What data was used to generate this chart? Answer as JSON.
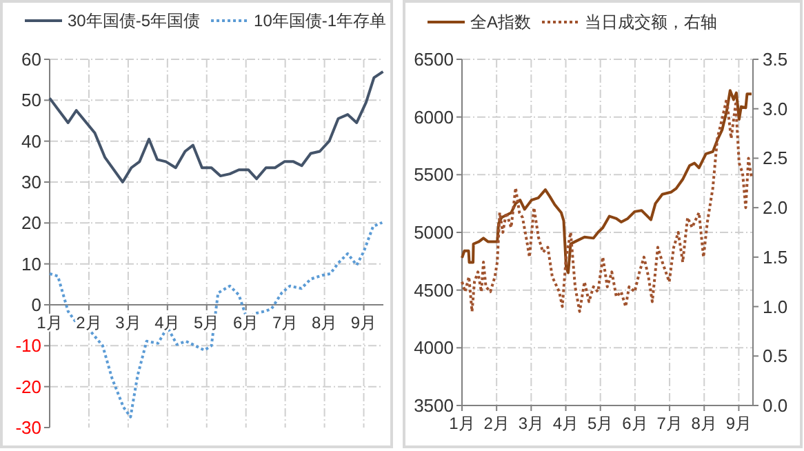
{
  "chart_data": [
    {
      "type": "line",
      "legend": "top",
      "grid": true,
      "xlim": [
        1,
        9.5
      ],
      "xticks": [
        {
          "value": 1,
          "label": "1月"
        },
        {
          "value": 2,
          "label": "2月"
        },
        {
          "value": 3,
          "label": "3月"
        },
        {
          "value": 4,
          "label": "4月"
        },
        {
          "value": 5,
          "label": "5月"
        },
        {
          "value": 6,
          "label": "6月"
        },
        {
          "value": 7,
          "label": "7月"
        },
        {
          "value": 8,
          "label": "8月"
        },
        {
          "value": 9,
          "label": "9月"
        }
      ],
      "ylim": [
        -30,
        60
      ],
      "yticks": [
        -30,
        -20,
        -10,
        0,
        10,
        20,
        30,
        40,
        50,
        60
      ],
      "series": [
        {
          "name": "30年国债-5年国债",
          "color": "#44546a",
          "line_style": "solid",
          "x": [
            1,
            1.47,
            1.68,
            2.15,
            2.41,
            2.86,
            3.08,
            3.29,
            3.53,
            3.74,
            3.96,
            4.21,
            4.45,
            4.65,
            4.88,
            5.12,
            5.35,
            5.59,
            5.82,
            6.06,
            6.27,
            6.51,
            6.74,
            6.98,
            7.21,
            7.42,
            7.65,
            7.88,
            8.12,
            8.35,
            8.59,
            8.82,
            9.06,
            9.26,
            9.49
          ],
          "values": [
            50.5,
            44.5,
            47.5,
            42,
            36,
            30,
            33.5,
            35,
            40.5,
            35.5,
            35,
            33.5,
            37.5,
            39,
            33.5,
            33.5,
            31.5,
            32,
            33,
            33,
            30.8,
            33.5,
            33.5,
            35,
            35,
            34,
            37,
            37.5,
            40,
            45.5,
            46.5,
            44.5,
            49.5,
            55.5,
            57
          ]
        },
        {
          "name": "10年国债-1年存单",
          "color": "#5b9bd5",
          "line_style": "dotted",
          "x": [
            1,
            1.21,
            1.47,
            1.68,
            2,
            2.35,
            2.59,
            2.88,
            3.06,
            3.24,
            3.47,
            3.76,
            4,
            4.24,
            4.47,
            4.71,
            4.94,
            5.12,
            5.29,
            5.59,
            5.82,
            6.02,
            6.24,
            6.47,
            6.65,
            6.91,
            7.12,
            7.41,
            7.65,
            7.94,
            8.15,
            8.35,
            8.59,
            8.82,
            9,
            9.24,
            9.47
          ],
          "values": [
            7.6,
            7,
            -1.6,
            -4.4,
            -6,
            -10,
            -18,
            -25,
            -27.4,
            -17.3,
            -8.9,
            -9.4,
            -5.5,
            -9.7,
            -8.9,
            -10,
            -11.1,
            -10,
            2.9,
            4.6,
            2.4,
            -3.3,
            -2.1,
            -1.6,
            -1,
            2.9,
            4.6,
            4,
            6.3,
            7.2,
            7.6,
            10.2,
            12.5,
            9.7,
            13,
            19.2,
            20.1
          ]
        }
      ]
    },
    {
      "type": "line",
      "legend": "top",
      "grid": true,
      "xlim": [
        1,
        9.41
      ],
      "xticks": [
        {
          "value": 1,
          "label": "1月"
        },
        {
          "value": 2,
          "label": "2月"
        },
        {
          "value": 3,
          "label": "3月"
        },
        {
          "value": 4,
          "label": "4月"
        },
        {
          "value": 5,
          "label": "5月"
        },
        {
          "value": 6,
          "label": "6月"
        },
        {
          "value": 7,
          "label": "7月"
        },
        {
          "value": 8,
          "label": "8月"
        },
        {
          "value": 9,
          "label": "9月"
        }
      ],
      "ylim": [
        3500,
        6500
      ],
      "yticks": [
        3500,
        4000,
        4500,
        5000,
        5500,
        6000,
        6500
      ],
      "y2lim": [
        0,
        3.5
      ],
      "y2ticks": [
        {
          "value": 0,
          "label": "0.0"
        },
        0.5,
        {
          "value": 1,
          "label": "1.0"
        },
        1.5,
        {
          "value": 2,
          "label": "2.0"
        },
        2.5,
        {
          "value": 3,
          "label": "3.0"
        },
        3.5
      ],
      "series": [
        {
          "name": "全A指数",
          "color": "#8b4513",
          "line_style": "solid",
          "x": [
            1,
            1.07,
            1.19,
            1.21,
            1.32,
            1.33,
            1.49,
            1.62,
            1.75,
            2.02,
            2.06,
            2.15,
            2.42,
            2.55,
            2.68,
            2.81,
            3.01,
            3.21,
            3.41,
            3.54,
            3.68,
            3.87,
            3.94,
            4.01,
            4.07,
            4.14,
            4.27,
            4.54,
            4.8,
            4.93,
            5.07,
            5.26,
            5.46,
            5.6,
            5.79,
            5.99,
            6.19,
            6.46,
            6.59,
            6.79,
            7.05,
            7.19,
            7.38,
            7.58,
            7.72,
            7.85,
            8.05,
            8.25,
            8.38,
            8.52,
            8.65,
            8.75,
            8.85,
            8.93,
            9.01,
            9.07,
            9.2,
            9.24,
            9.37
          ],
          "values": [
            4780,
            4840,
            4840,
            4740,
            4740,
            4900,
            4920,
            4950,
            4920,
            4920,
            5080,
            5130,
            5170,
            5250,
            5280,
            5200,
            5280,
            5300,
            5370,
            5310,
            5240,
            5170,
            5100,
            4700,
            4650,
            4900,
            4920,
            4960,
            4950,
            5000,
            5040,
            5140,
            5120,
            5090,
            5120,
            5180,
            5190,
            5110,
            5250,
            5330,
            5350,
            5380,
            5460,
            5580,
            5600,
            5560,
            5680,
            5700,
            5800,
            5890,
            6050,
            6230,
            6150,
            6210,
            5980,
            6090,
            6080,
            6200,
            6200
          ]
        },
        {
          "name": "当日成交额，右轴",
          "color": "#a0522d",
          "line_style": "dotted",
          "axis": "y2",
          "x": [
            1,
            1.09,
            1.2,
            1.29,
            1.36,
            1.46,
            1.56,
            1.62,
            1.69,
            1.82,
            1.95,
            2.02,
            2.09,
            2.18,
            2.28,
            2.42,
            2.55,
            2.66,
            2.75,
            2.88,
            2.95,
            3.08,
            3.21,
            3.34,
            3.48,
            3.61,
            3.81,
            3.9,
            4.01,
            4.14,
            4.27,
            4.4,
            4.54,
            4.67,
            4.8,
            4.93,
            5.07,
            5.2,
            5.33,
            5.46,
            5.6,
            5.73,
            5.83,
            5.99,
            6.13,
            6.26,
            6.39,
            6.5,
            6.66,
            6.79,
            6.99,
            7.12,
            7.25,
            7.38,
            7.52,
            7.65,
            7.85,
            7.98,
            8.09,
            8.25,
            8.38,
            8.52,
            8.65,
            8.78,
            8.91,
            9.01,
            9.11,
            9.2,
            9.28,
            9.37
          ],
          "values": [
            1.25,
            1.15,
            1.3,
            0.95,
            1.25,
            1.35,
            1.15,
            1.45,
            1.2,
            1.15,
            1.3,
            1.45,
            1.95,
            1.75,
            1.95,
            1.8,
            2.2,
            1.95,
            1.9,
            1.65,
            1.5,
            2.0,
            1.7,
            1.55,
            1.6,
            1.3,
            1.15,
            1.0,
            1.5,
            1.75,
            1.2,
            0.95,
            1.25,
            1.05,
            1.2,
            1.15,
            1.5,
            1.2,
            1.35,
            1.1,
            1.15,
            1.0,
            1.2,
            1.15,
            1.35,
            1.5,
            1.3,
            1.05,
            1.6,
            1.45,
            1.25,
            1.6,
            1.75,
            1.45,
            1.9,
            1.8,
            1.95,
            1.5,
            1.85,
            2.2,
            2.7,
            2.9,
            3.1,
            2.7,
            3.05,
            2.45,
            2.35,
            2.0,
            2.5,
            2.3
          ]
        }
      ]
    }
  ]
}
